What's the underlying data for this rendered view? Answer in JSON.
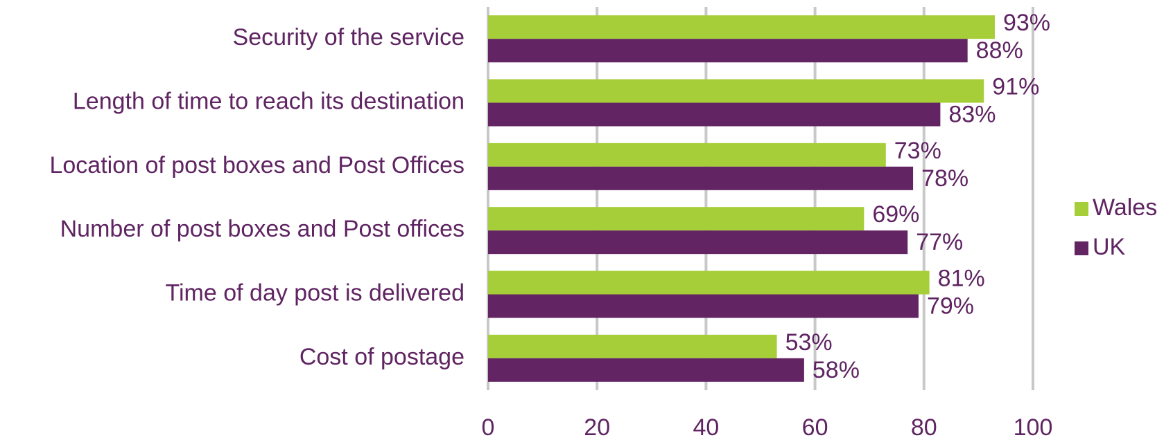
{
  "chart_data": {
    "type": "bar",
    "orientation": "horizontal",
    "categories": [
      "Security of the service",
      "Length of time to reach its destination",
      "Location of post boxes and Post Offices",
      "Number of post boxes and Post offices",
      "Time of day post is delivered",
      "Cost of postage"
    ],
    "series": [
      {
        "name": "Wales",
        "color": "#a6ce39",
        "values": [
          93,
          91,
          73,
          69,
          81,
          53
        ],
        "value_labels": [
          "93%",
          "91%",
          "73%",
          "69%",
          "81%",
          "53%"
        ]
      },
      {
        "name": "UK",
        "color": "#632463",
        "values": [
          88,
          83,
          78,
          77,
          79,
          58
        ],
        "value_labels": [
          "88%",
          "83%",
          "78%",
          "77%",
          "79%",
          "58%"
        ]
      }
    ],
    "xlim": [
      0,
      100
    ],
    "xticks": [
      0,
      20,
      40,
      60,
      80,
      100
    ],
    "grid": true,
    "legend": "right"
  }
}
